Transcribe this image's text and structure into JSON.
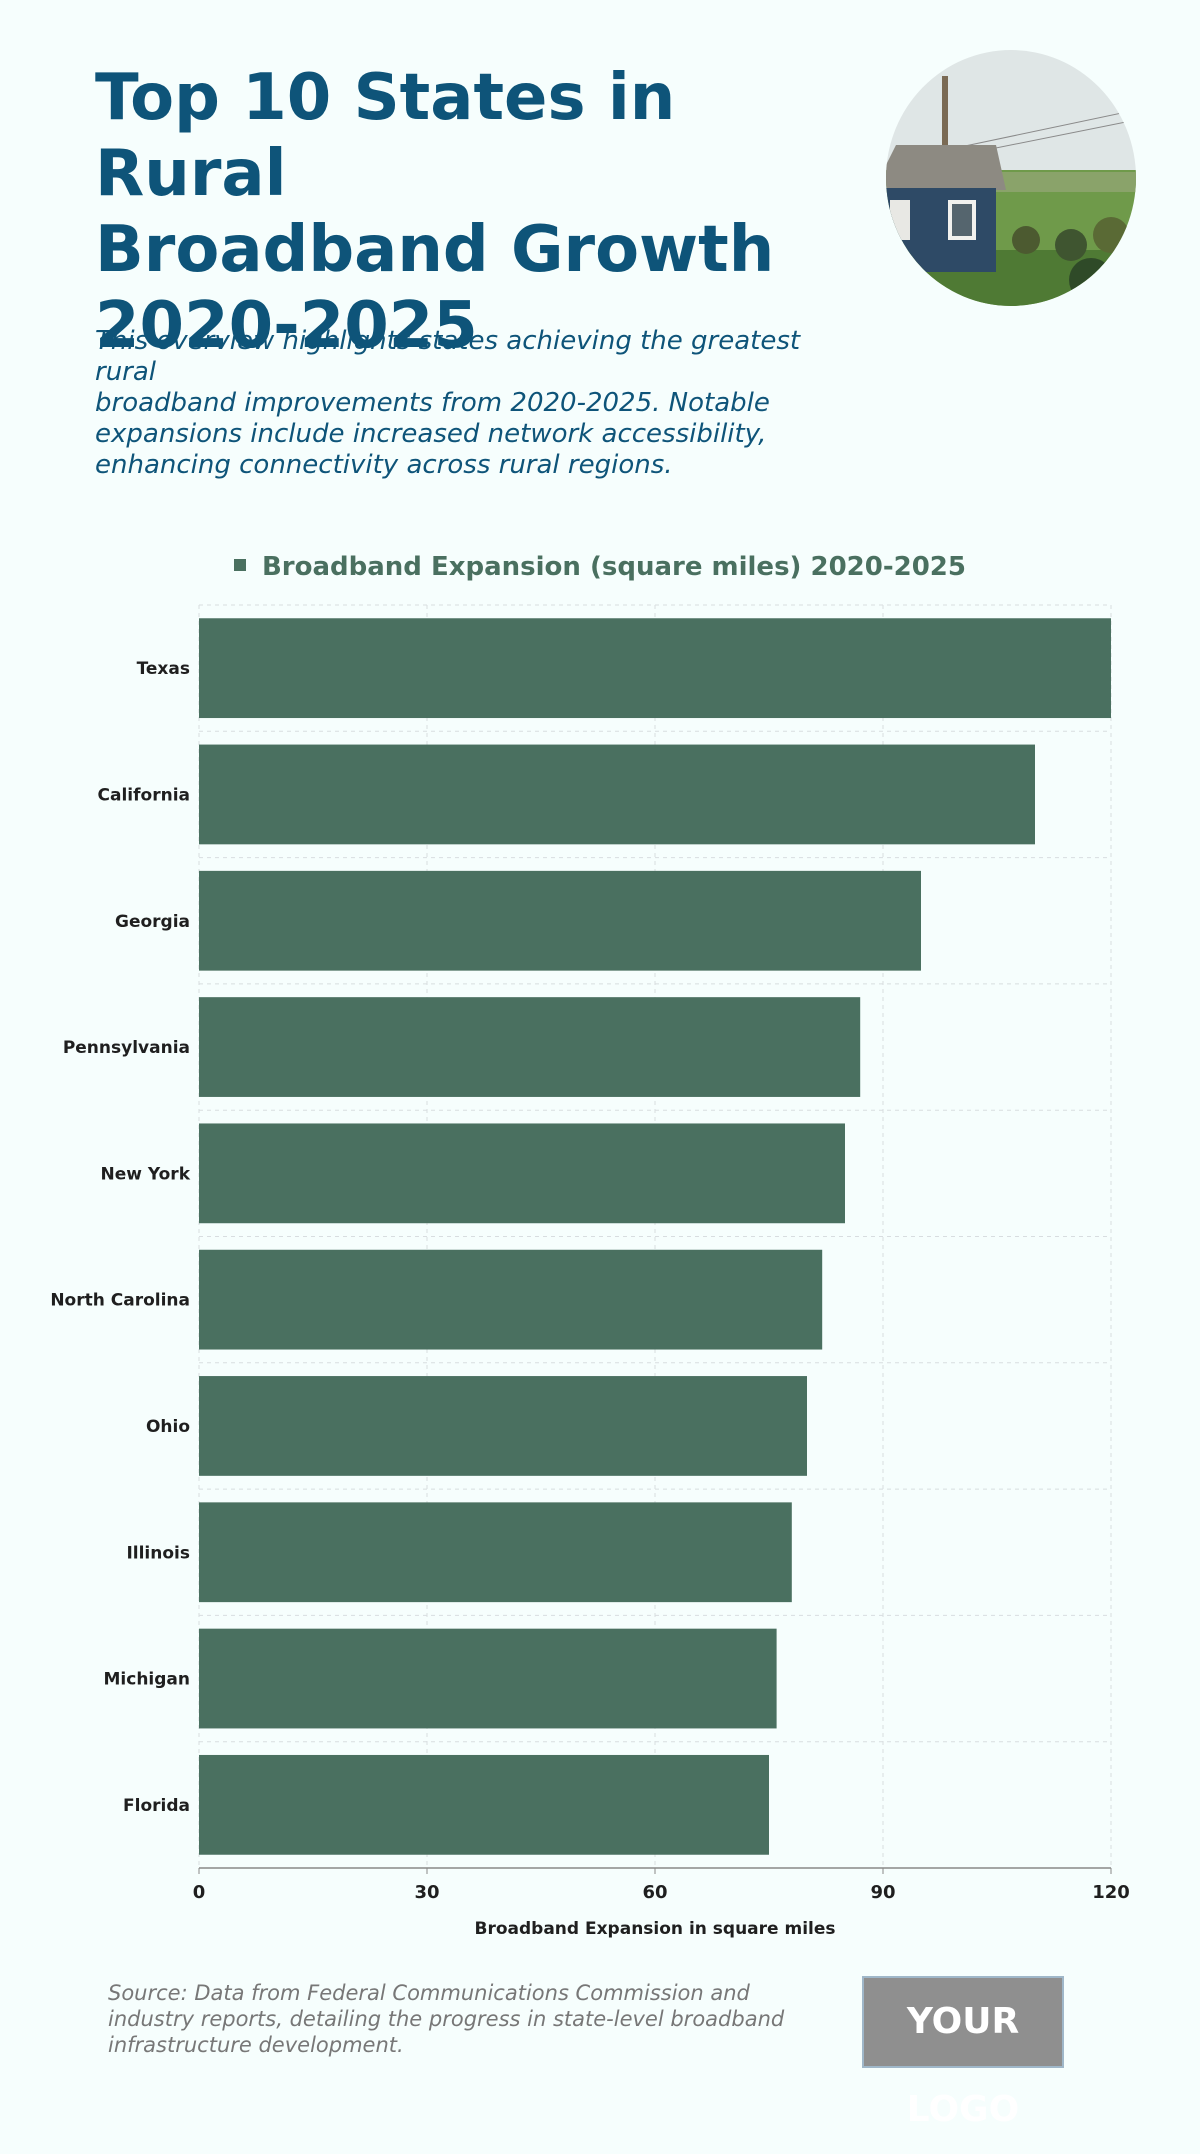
{
  "header": {
    "title": "Top 10 States in Rural\nBroadband Growth\n2020-2025",
    "subtitle": "This overview highlights states achieving the greatest rural\nbroadband improvements from 2020-2025. Notable\nexpansions include increased network accessibility,\nenhancing connectivity across rural regions."
  },
  "colors": {
    "bar": "#4a7060",
    "title": "#0e5479",
    "grid": "#d8dde0"
  },
  "chart_data": {
    "type": "bar",
    "orientation": "horizontal",
    "categories": [
      "Texas",
      "California",
      "Georgia",
      "Pennsylvania",
      "New York",
      "North Carolina",
      "Ohio",
      "Illinois",
      "Michigan",
      "Florida"
    ],
    "series": [
      {
        "name": "Broadband Expansion (square miles) 2020-2025",
        "values": [
          120,
          110,
          95,
          87,
          85,
          82,
          80,
          78,
          76,
          75
        ]
      }
    ],
    "xlabel": "Broadband Expansion in square miles",
    "ylabel": "",
    "xlim": [
      0,
      120
    ],
    "xticks": [
      0,
      30,
      60,
      90,
      120
    ],
    "grid": true,
    "legend_position": "top-center"
  },
  "footer": {
    "source": "Source: Data from Federal Communications Commission and\nindustry reports, detailing the progress in state-level broadband\ninfrastructure development.",
    "logo": "YOUR LOGO"
  }
}
